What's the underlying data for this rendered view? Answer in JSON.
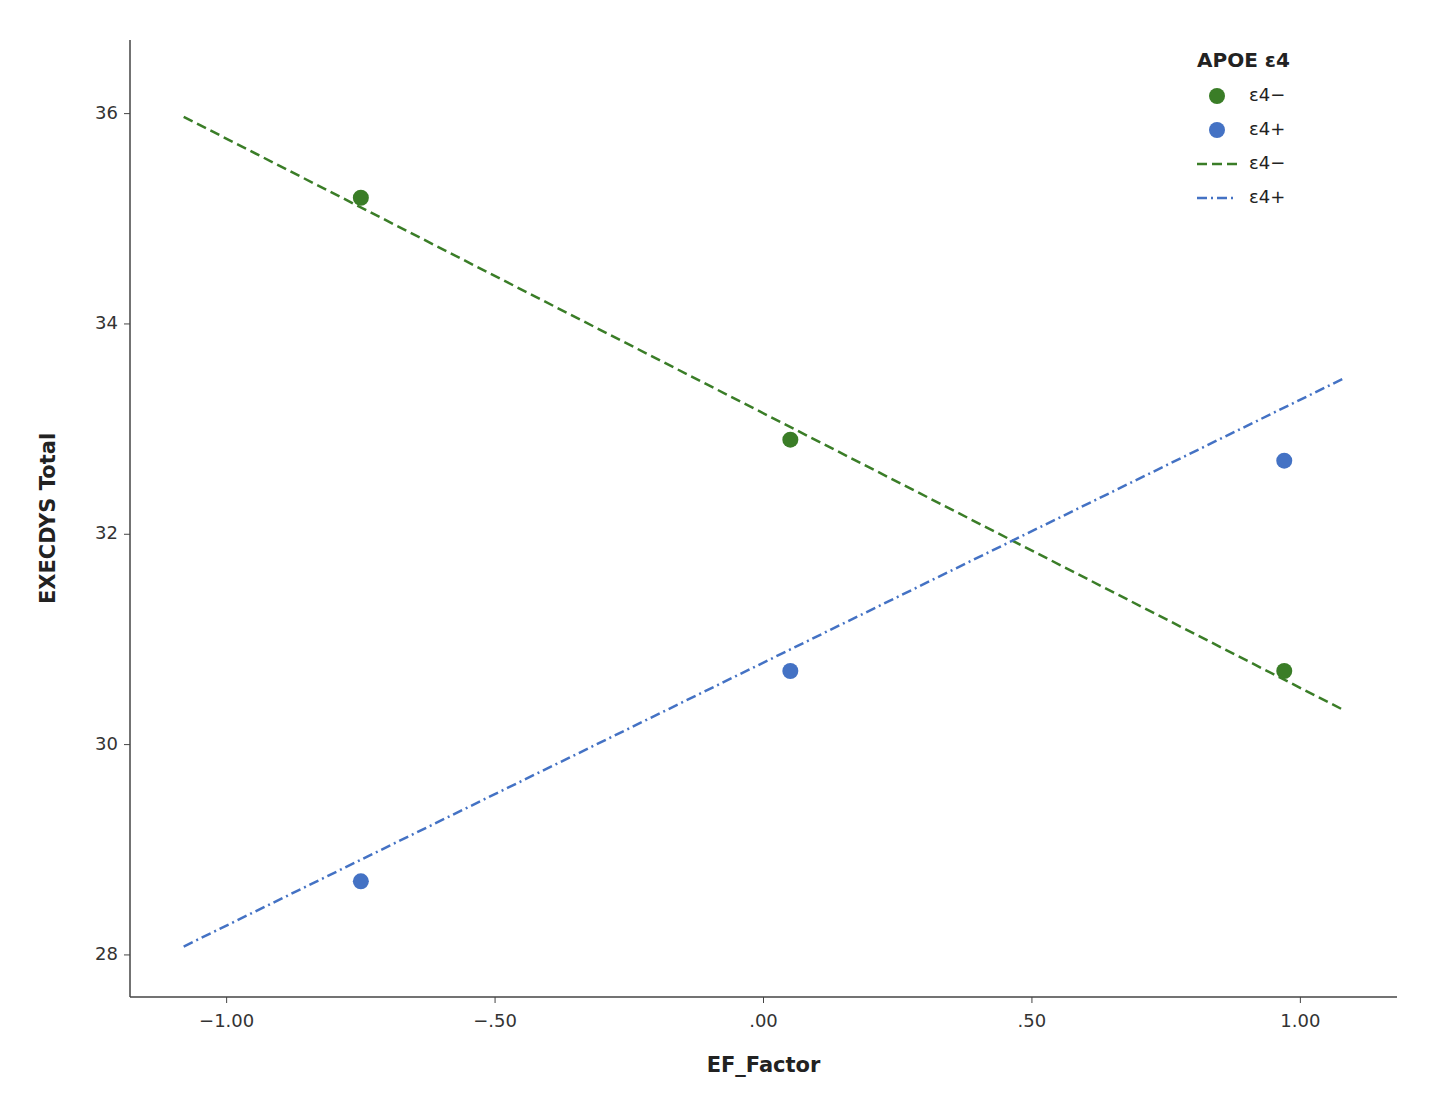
{
  "chart_data": {
    "type": "scatter",
    "xlabel": "EF_Factor",
    "ylabel": "EXECDYS Total",
    "legend_title": "APOE ε4",
    "series": [
      {
        "name": "ε4−",
        "type": "scatter",
        "marker": "circle",
        "color": "#3a7d27",
        "x": [
          -0.75,
          0.05,
          0.97
        ],
        "values": [
          35.2,
          32.9,
          30.7
        ]
      },
      {
        "name": "ε4+",
        "type": "scatter",
        "marker": "circle",
        "color": "#4472c4",
        "x": [
          -0.75,
          0.05,
          0.97
        ],
        "values": [
          28.7,
          30.7,
          32.7
        ]
      },
      {
        "name": "ε4−",
        "type": "line",
        "line_style": "dashed",
        "color": "#3a7d27",
        "x": [
          -1.08,
          1.08
        ],
        "values": [
          35.97,
          30.33
        ]
      },
      {
        "name": "ε4+",
        "type": "line",
        "line_style": "dashdot",
        "color": "#4472c4",
        "x": [
          -1.08,
          1.08
        ],
        "values": [
          28.08,
          33.48
        ]
      }
    ],
    "xlim": [
      -1.18,
      1.18
    ],
    "ylim": [
      27.6,
      36.7
    ],
    "xticks": [
      {
        "value": -1.0,
        "label": "−1.00"
      },
      {
        "value": -0.5,
        "label": "−.50"
      },
      {
        "value": 0.0,
        "label": ".00"
      },
      {
        "value": 0.5,
        "label": ".50"
      },
      {
        "value": 1.0,
        "label": "1.00"
      }
    ],
    "yticks": [
      28,
      30,
      32,
      34,
      36
    ],
    "grid": false,
    "legend": "upper right"
  }
}
